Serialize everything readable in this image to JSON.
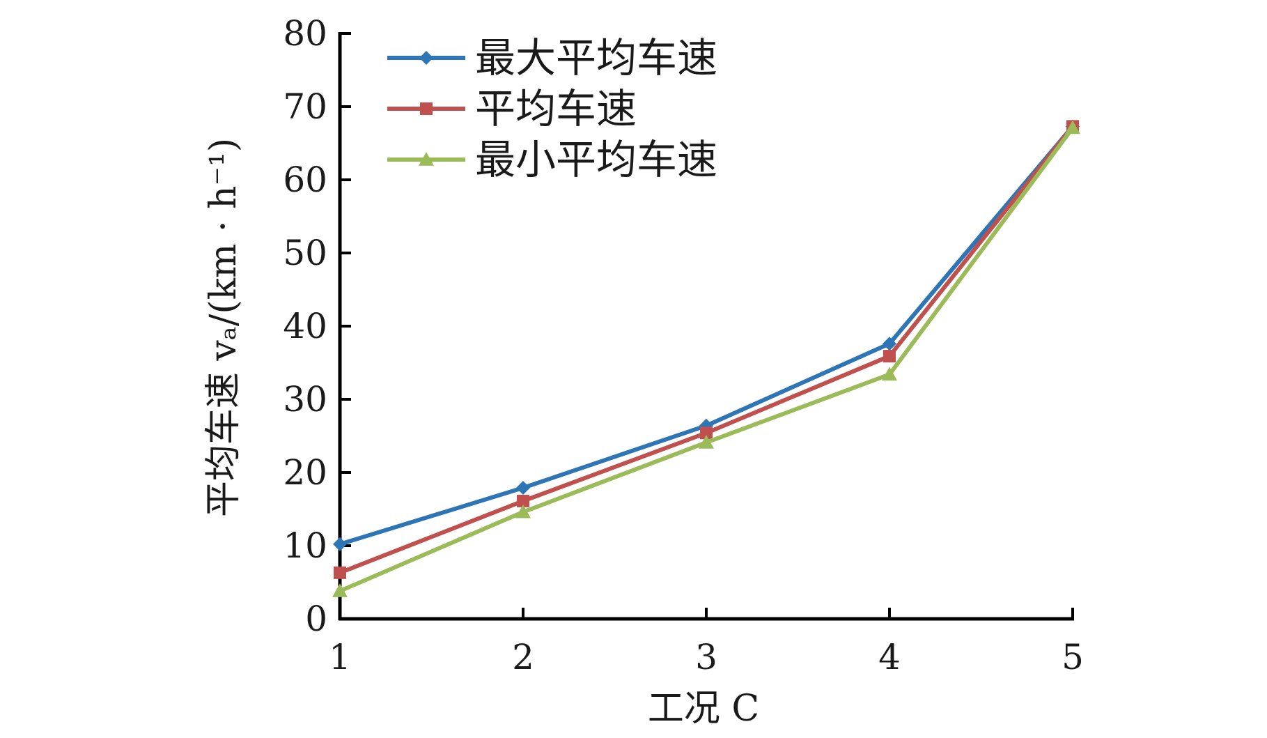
{
  "chart_data": {
    "type": "line",
    "xlabel": "工况 C",
    "ylabel": "平均车速 vₐ/(km · h⁻¹)",
    "x": [
      1,
      2,
      3,
      4,
      5
    ],
    "xlim": [
      1,
      5
    ],
    "ylim": [
      0,
      80
    ],
    "yticks": [
      0,
      10,
      20,
      30,
      40,
      50,
      60,
      70,
      80
    ],
    "xticks": [
      1,
      2,
      3,
      4,
      5
    ],
    "grid": false,
    "legend_position": "top-left",
    "series": [
      {
        "name": "最大平均车速",
        "color": "#2e75b6",
        "marker": "diamond",
        "values": [
          10.2,
          17.9,
          26.4,
          37.6,
          67.3
        ]
      },
      {
        "name": "平均车速",
        "color": "#c0504d",
        "marker": "square",
        "values": [
          6.3,
          16.1,
          25.4,
          35.9,
          67.3
        ]
      },
      {
        "name": "最小平均车速",
        "color": "#9bbb59",
        "marker": "triangle",
        "values": [
          3.8,
          14.6,
          24.1,
          33.4,
          67.1
        ]
      }
    ]
  }
}
